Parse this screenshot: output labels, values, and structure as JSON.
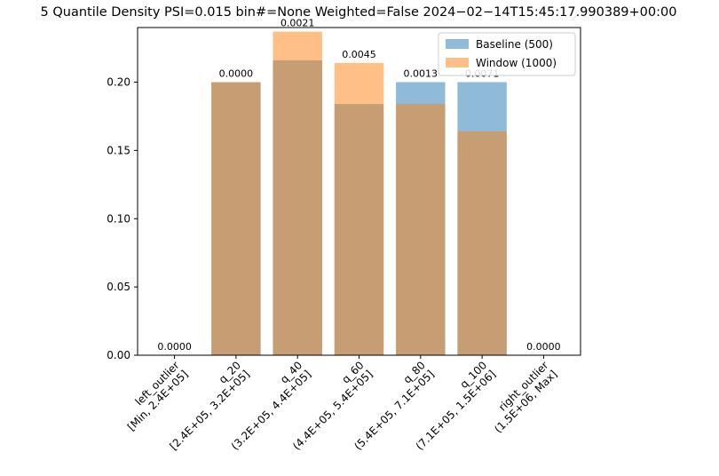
{
  "chart_data": {
    "type": "bar",
    "title": "5 Quantile Density PSI=0.015 bin#=None Weighted=False 2024−02−14T15:45:17.990389+00:00",
    "xlabel": "",
    "ylabel": "",
    "ylim": [
      0,
      0.24
    ],
    "yticks": [
      "0.00",
      "0.05",
      "0.10",
      "0.15",
      "0.20"
    ],
    "categories": [
      {
        "name": "left_outlier",
        "range": "[Min, 2.4E+05]"
      },
      {
        "name": "q_20",
        "range": "[2.4E+05, 3.2E+05]"
      },
      {
        "name": "q_40",
        "range": "(3.2E+05, 4.4E+05]"
      },
      {
        "name": "q_60",
        "range": "(4.4E+05, 5.4E+05]"
      },
      {
        "name": "q_80",
        "range": "(5.4E+05, 7.1E+05]"
      },
      {
        "name": "q_100",
        "range": "(7.1E+05, 1.5E+06]"
      },
      {
        "name": "right_outlier",
        "range": "(1.5E+06, Max]"
      }
    ],
    "series": [
      {
        "name": "Baseline (500)",
        "color": "#1f77b4",
        "opacity": 0.5,
        "values": [
          0.0,
          0.2,
          0.216,
          0.184,
          0.2,
          0.2,
          0.0
        ]
      },
      {
        "name": "Window (1000)",
        "color": "#ff7f0e",
        "opacity": 0.5,
        "values": [
          0.0,
          0.2,
          0.237,
          0.214,
          0.184,
          0.164,
          0.0
        ]
      }
    ],
    "psi_labels": [
      "0.0000",
      "0.0000",
      "0.0021",
      "0.0045",
      "0.0013",
      "0.0071",
      "0.0000"
    ],
    "legend": "top-right",
    "grid": false
  }
}
